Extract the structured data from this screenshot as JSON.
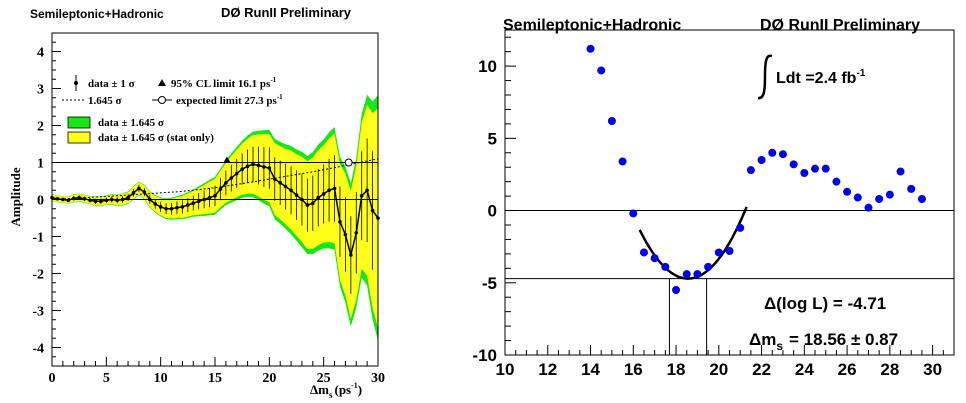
{
  "chart_data": [
    {
      "type": "line",
      "panel": "left",
      "header_left": "Semileptonic+Hadronic",
      "header_right": "DØ RunII Preliminary",
      "ylabel": "Amplitude",
      "xlabel_main": "Δm",
      "xlabel_sub": "s",
      "xlabel_unit": "(ps",
      "xlabel_exp": "-1",
      "xlabel_close": ")",
      "xlim": [
        0,
        30
      ],
      "ylim": [
        -4.5,
        4.5
      ],
      "xticks": [
        "0",
        "5",
        "10",
        "15",
        "20",
        "25",
        "30"
      ],
      "yticks": [
        "-4",
        "-3",
        "-2",
        "-1",
        "0",
        "1",
        "2",
        "3",
        "4"
      ],
      "reference_lines": [
        0,
        1
      ],
      "legend": {
        "data_1sigma": "data ± 1 σ",
        "sigma_1645": "1.645 σ",
        "cl_limit": "95% CL limit  16.1 ps",
        "cl_limit_exp": "-1",
        "expected_limit": "expected limit 27.3 ps",
        "expected_limit_exp": "-1",
        "band_green": "data ± 1.645 σ",
        "band_yellow": "data ± 1.645 σ (stat only)"
      },
      "colors": {
        "green_band": "#19e619",
        "yellow_band": "#ffff19",
        "data": "#000000"
      },
      "amplitude": {
        "x": [
          0,
          0.5,
          1,
          1.5,
          2,
          2.5,
          3,
          3.5,
          4,
          4.5,
          5,
          5.5,
          6,
          6.5,
          7,
          7.5,
          8,
          8.5,
          9,
          9.5,
          10,
          10.5,
          11,
          11.5,
          12,
          12.5,
          13,
          13.5,
          14,
          14.5,
          15,
          15.5,
          16,
          16.5,
          17,
          17.5,
          18,
          18.5,
          19,
          19.5,
          20,
          20.5,
          21,
          21.5,
          22,
          22.5,
          23,
          23.5,
          24,
          24.5,
          25,
          25.5,
          26,
          26.5,
          27,
          27.5,
          28,
          28.5,
          29,
          29.5,
          30
        ],
        "y": [
          0.05,
          0.02,
          0.0,
          -0.02,
          0.03,
          0.05,
          0.02,
          -0.02,
          -0.05,
          -0.05,
          -0.02,
          0.0,
          -0.02,
          0.0,
          0.05,
          0.18,
          0.3,
          0.2,
          0.0,
          -0.12,
          -0.2,
          -0.25,
          -0.25,
          -0.22,
          -0.2,
          -0.15,
          -0.1,
          -0.05,
          0.0,
          0.05,
          0.1,
          0.28,
          0.45,
          0.58,
          0.7,
          0.82,
          0.9,
          0.95,
          0.92,
          0.88,
          0.85,
          0.55,
          0.45,
          0.35,
          0.25,
          0.12,
          0.0,
          -0.15,
          -0.1,
          0.05,
          0.15,
          0.25,
          0.3,
          -0.6,
          -0.95,
          -1.5,
          -0.9,
          0.1,
          0.25,
          -0.3,
          -0.5
        ],
        "err_1sigma": [
          0.05,
          0.05,
          0.05,
          0.05,
          0.06,
          0.06,
          0.06,
          0.06,
          0.07,
          0.07,
          0.07,
          0.08,
          0.08,
          0.09,
          0.09,
          0.1,
          0.1,
          0.11,
          0.12,
          0.13,
          0.14,
          0.15,
          0.16,
          0.17,
          0.18,
          0.19,
          0.2,
          0.22,
          0.24,
          0.26,
          0.28,
          0.3,
          0.33,
          0.36,
          0.39,
          0.42,
          0.45,
          0.48,
          0.51,
          0.54,
          0.56,
          0.59,
          0.6,
          0.62,
          0.65,
          0.67,
          0.7,
          0.72,
          0.75,
          0.78,
          0.8,
          0.85,
          0.9,
          0.95,
          1.0,
          1.05,
          1.1,
          1.2,
          1.4,
          1.6,
          1.8
        ]
      },
      "sensitivity_1645": {
        "x": [
          0,
          3,
          6,
          9,
          12,
          15,
          18,
          21,
          24,
          27,
          30
        ],
        "y": [
          0.0,
          0.05,
          0.1,
          0.16,
          0.22,
          0.32,
          0.45,
          0.6,
          0.75,
          0.92,
          1.1
        ]
      },
      "markers": {
        "cl_limit_x": 16.1,
        "expected_limit_x": 27.3
      }
    },
    {
      "type": "scatter",
      "panel": "right",
      "header_left": "Semileptonic+Hadronic",
      "header_right": "DØ RunII Preliminary",
      "integral_label": "Ldt =2.4 fb",
      "integral_exp": "-1",
      "result_loglike": "Δ(log L) = -4.71",
      "result_dm_main": "Δm",
      "result_dm_sub": "s",
      "result_dm_value": "= 18.56  ± 0.87",
      "xlim": [
        10,
        31
      ],
      "ylim": [
        -10,
        12.5
      ],
      "xticks": [
        "10",
        "12",
        "14",
        "16",
        "18",
        "20",
        "22",
        "24",
        "26",
        "28",
        "30"
      ],
      "yticks": [
        "-10",
        "-5",
        "0",
        "5",
        "10"
      ],
      "reference_lines": [
        0,
        -4.71
      ],
      "fit_range": [
        16.3,
        21.3
      ],
      "fit_minimum": {
        "x": 18.56,
        "y": -4.71
      },
      "one_sigma_lines_x": [
        17.69,
        19.43
      ],
      "colors": {
        "points": "#0000e6",
        "fit": "#000000"
      },
      "points": {
        "x": [
          14,
          14.5,
          15,
          15.5,
          16,
          16.5,
          17,
          17.5,
          18,
          18.5,
          19,
          19.5,
          20,
          20.5,
          21,
          21.5,
          22,
          22.5,
          23,
          23.5,
          24,
          24.5,
          25,
          25.5,
          26,
          26.5,
          27,
          27.5,
          28,
          28.5,
          29,
          29.5
        ],
        "y": [
          11.2,
          9.7,
          6.2,
          3.4,
          -0.2,
          -2.9,
          -3.3,
          -3.9,
          -5.5,
          -4.4,
          -4.4,
          -3.9,
          -2.9,
          -2.8,
          -1.2,
          2.8,
          3.5,
          4.0,
          3.9,
          3.2,
          2.6,
          2.9,
          2.9,
          2.0,
          1.3,
          0.9,
          0.2,
          0.8,
          1.1,
          2.7,
          1.5,
          0.8
        ]
      }
    }
  ]
}
